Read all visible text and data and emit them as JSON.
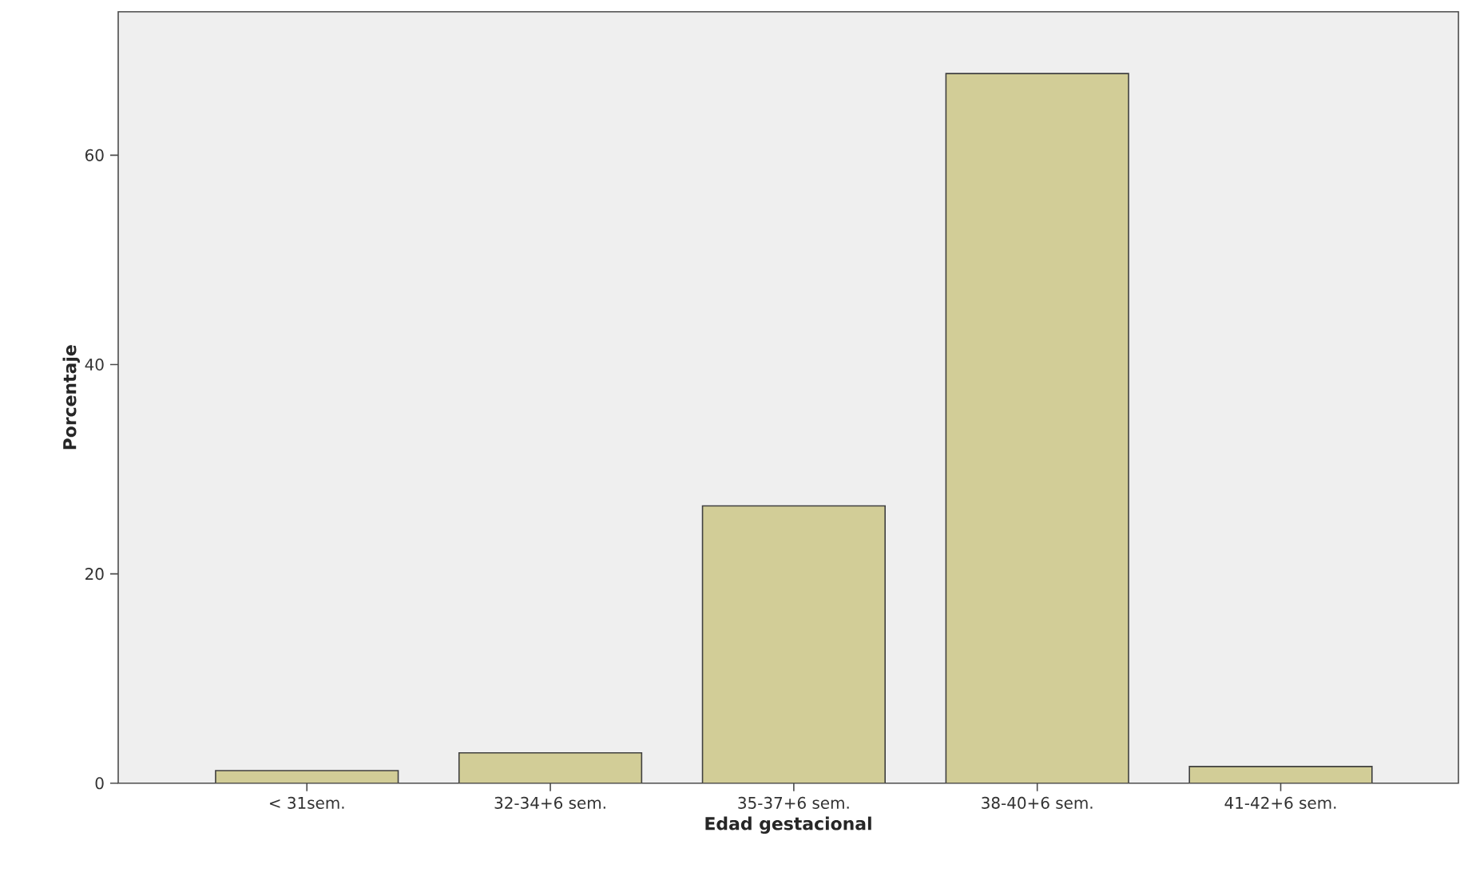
{
  "chart_data": {
    "type": "bar",
    "xlabel": "Edad gestacional",
    "ylabel": "Porcentaje",
    "categories": [
      "< 31sem.",
      "32-34+6 sem.",
      "35-37+6 sem.",
      "38-40+6 sem.",
      "41-42+6 sem."
    ],
    "values": [
      1.2,
      2.9,
      26.5,
      67.8,
      1.6
    ],
    "color": "#d2cd97",
    "ylim": [
      0,
      73.7
    ],
    "yticks": [
      0,
      20,
      40,
      60
    ]
  }
}
